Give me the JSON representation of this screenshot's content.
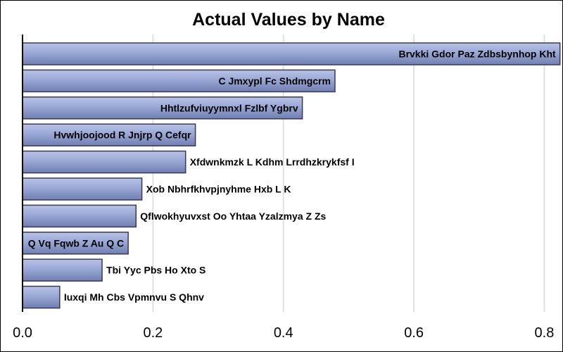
{
  "chart_data": {
    "type": "bar",
    "orientation": "horizontal",
    "title": "Actual Values by Name",
    "xlabel": "",
    "ylabel": "",
    "xlim": [
      0,
      0.82
    ],
    "xticks": [
      0.0,
      0.2,
      0.4,
      0.6,
      0.8
    ],
    "xtick_labels": [
      "0.0",
      "0.2",
      "0.4",
      "0.6",
      "0.8"
    ],
    "grid": true,
    "categories": [
      "Brvkki Gdor Paz Zdbsbynhop Kht",
      "C Jmxypl Fc Shdmgcrm",
      "Hhtlzufviuyymnxl Fzlbf Ygbrv",
      "Hvwhjoojood R Jnjrp  Q Cefqr",
      "Xfdwnkmzk L  Kdhm Lrrdhzkrykfsf I",
      "Xob Nbhrfkhvpjnyhme Hxb L K",
      "Qflwokhyuvxst Oo  Yhtaa Yzalzmya  Z Zs",
      "Q Vq  Fqwb  Z Au  Q   C",
      "Tbi Yyc Pbs  Ho Xto S",
      "Iuxqi Mh Cbs Vpmnvu S Qhnv"
    ],
    "values": [
      0.824,
      0.479,
      0.429,
      0.265,
      0.25,
      0.183,
      0.174,
      0.162,
      0.122,
      0.057
    ],
    "bar_color": "#9aa8d6"
  }
}
